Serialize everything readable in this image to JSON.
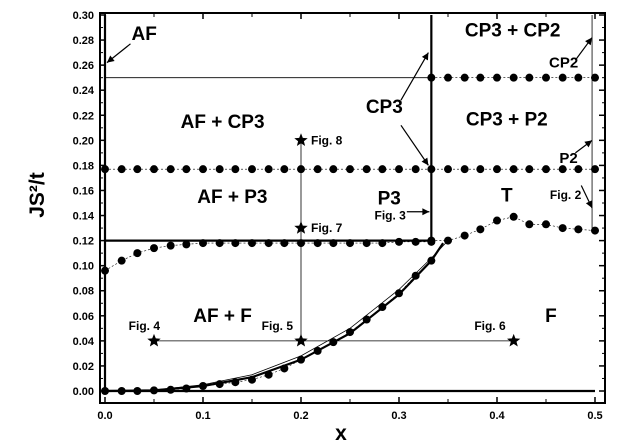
{
  "chart_data": {
    "type": "scatter",
    "xlabel": "x",
    "ylabel": "JS²/t",
    "xlim": [
      0,
      0.5
    ],
    "ylim": [
      -0.01,
      0.3
    ],
    "x_ticks": [
      "0.0",
      "0.1",
      "0.2",
      "0.3",
      "0.4",
      "0.5"
    ],
    "y_ticks": [
      "0.00",
      "0.02",
      "0.04",
      "0.06",
      "0.08",
      "0.10",
      "0.12",
      "0.14",
      "0.16",
      "0.18",
      "0.20",
      "0.22",
      "0.24",
      "0.26",
      "0.28",
      "0.30"
    ],
    "x_tick_values": [
      0,
      0.1,
      0.2,
      0.3,
      0.4,
      0.5
    ],
    "y_tick_values": [
      0,
      0.02,
      0.04,
      0.06,
      0.08,
      0.1,
      0.12,
      0.14,
      0.16,
      0.18,
      0.2,
      0.22,
      0.24,
      0.26,
      0.28,
      0.3
    ],
    "grid": false,
    "series": [
      {
        "style": "dots",
        "x": [
          0.0,
          0.017,
          0.033,
          0.05,
          0.067,
          0.083,
          0.1,
          0.117,
          0.133,
          0.15,
          0.167,
          0.183,
          0.2,
          0.217,
          0.233,
          0.25,
          0.267,
          0.283,
          0.3,
          0.317,
          0.333
        ],
        "y": [
          0.0,
          0.0,
          0.0,
          0.0005,
          0.001,
          0.002,
          0.004,
          0.0055,
          0.007,
          0.009,
          0.013,
          0.018,
          0.025,
          0.032,
          0.039,
          0.047,
          0.057,
          0.067,
          0.078,
          0.092,
          0.104
        ]
      },
      {
        "style": "dots",
        "x": [
          0.0,
          0.017,
          0.033,
          0.05,
          0.067,
          0.083,
          0.1,
          0.117,
          0.133,
          0.15,
          0.167,
          0.183,
          0.2,
          0.217,
          0.233,
          0.25,
          0.267,
          0.283,
          0.3,
          0.317,
          0.333
        ],
        "y": [
          0.096,
          0.104,
          0.11,
          0.114,
          0.116,
          0.117,
          0.118,
          0.118,
          0.118,
          0.118,
          0.118,
          0.118,
          0.118,
          0.118,
          0.118,
          0.118,
          0.118,
          0.118,
          0.119,
          0.119,
          0.119
        ]
      },
      {
        "style": "dots",
        "x": [
          0.333,
          0.35,
          0.367,
          0.383,
          0.4,
          0.417,
          0.433,
          0.45,
          0.467,
          0.483,
          0.5
        ],
        "y": [
          0.12,
          0.12,
          0.124,
          0.129,
          0.136,
          0.139,
          0.133,
          0.133,
          0.13,
          0.129,
          0.128
        ]
      },
      {
        "style": "dots",
        "x": [
          0.0,
          0.017,
          0.033,
          0.05,
          0.067,
          0.083,
          0.1,
          0.117,
          0.133,
          0.15,
          0.167,
          0.183,
          0.2,
          0.217,
          0.233,
          0.25,
          0.267,
          0.283,
          0.3,
          0.317,
          0.333,
          0.35,
          0.367,
          0.383,
          0.4,
          0.417,
          0.433,
          0.45,
          0.467,
          0.483,
          0.5
        ],
        "y": [
          0.177,
          0.177,
          0.177,
          0.177,
          0.177,
          0.177,
          0.177,
          0.177,
          0.177,
          0.177,
          0.177,
          0.177,
          0.177,
          0.177,
          0.177,
          0.177,
          0.177,
          0.177,
          0.177,
          0.177,
          0.177,
          0.177,
          0.177,
          0.177,
          0.177,
          0.177,
          0.177,
          0.177,
          0.177,
          0.177,
          0.177
        ]
      },
      {
        "style": "dots",
        "x": [
          0.333,
          0.35,
          0.367,
          0.383,
          0.4,
          0.417,
          0.433,
          0.45,
          0.467,
          0.483,
          0.5
        ],
        "y": [
          0.25,
          0.25,
          0.25,
          0.25,
          0.25,
          0.25,
          0.25,
          0.25,
          0.25,
          0.25,
          0.25
        ]
      },
      {
        "style": "thick",
        "x": [
          0.0,
          0.05,
          0.1,
          0.15,
          0.2,
          0.25,
          0.3,
          0.333,
          0.345
        ],
        "y": [
          0.0,
          0.0005,
          0.004,
          0.011,
          0.025,
          0.046,
          0.077,
          0.104,
          0.118
        ]
      },
      {
        "style": "thin",
        "x": [
          0.0,
          0.05,
          0.1,
          0.15,
          0.2,
          0.25,
          0.3,
          0.333,
          0.35
        ],
        "y": [
          0.0,
          0.0008,
          0.005,
          0.013,
          0.028,
          0.05,
          0.081,
          0.106,
          0.12
        ]
      },
      {
        "style": "thick",
        "x": [
          0.0,
          0.333
        ],
        "y": [
          0.12,
          0.12
        ]
      },
      {
        "style": "thin",
        "x": [
          0.0,
          0.333
        ],
        "y": [
          0.25,
          0.25
        ]
      },
      {
        "style": "thin",
        "x": [
          0.05,
          0.417
        ],
        "y": [
          0.04,
          0.04
        ]
      },
      {
        "style": "thin",
        "x": [
          0.2,
          0.2
        ],
        "y": [
          0.04,
          0.2
        ]
      },
      {
        "style": "thick",
        "x": [
          0.333,
          0.333
        ],
        "y": [
          0.12,
          0.3
        ]
      },
      {
        "style": "thick",
        "x": [
          0.0,
          0.0
        ],
        "y": [
          0.0,
          0.3
        ]
      },
      {
        "style": "thick",
        "x": [
          0.0,
          0.5
        ],
        "y": [
          0.0,
          0.0
        ]
      },
      {
        "style": "thin",
        "x": [
          0.497,
          0.497
        ],
        "y": [
          0.13,
          0.3
        ]
      }
    ],
    "stars": [
      {
        "x": 0.05,
        "y": 0.04,
        "label": "Fig. 4"
      },
      {
        "x": 0.2,
        "y": 0.04,
        "label": "Fig. 5"
      },
      {
        "x": 0.417,
        "y": 0.04,
        "label": "Fig. 6"
      },
      {
        "x": 0.2,
        "y": 0.13,
        "label": "Fig. 7"
      },
      {
        "x": 0.2,
        "y": 0.2,
        "label": "Fig. 8"
      }
    ],
    "annotations": [
      {
        "text": "AF",
        "x": 0.04,
        "y": 0.28,
        "kind": "region"
      },
      {
        "text": "AF + CP3",
        "x": 0.12,
        "y": 0.21,
        "kind": "region"
      },
      {
        "text": "AF + P3",
        "x": 0.13,
        "y": 0.15,
        "kind": "region"
      },
      {
        "text": "AF + F",
        "x": 0.12,
        "y": 0.055,
        "kind": "region"
      },
      {
        "text": "F",
        "x": 0.455,
        "y": 0.055,
        "kind": "region"
      },
      {
        "text": "CP3 + CP2",
        "x": 0.416,
        "y": 0.283,
        "kind": "region"
      },
      {
        "text": "CP3 + P2",
        "x": 0.41,
        "y": 0.212,
        "kind": "region"
      },
      {
        "text": "CP3",
        "x": 0.285,
        "y": 0.222,
        "kind": "side"
      },
      {
        "text": "P3",
        "x": 0.29,
        "y": 0.149,
        "kind": "side"
      },
      {
        "text": "CP2",
        "x": 0.468,
        "y": 0.258,
        "kind": "side-small"
      },
      {
        "text": "P2",
        "x": 0.473,
        "y": 0.182,
        "kind": "side-small"
      },
      {
        "text": "T",
        "x": 0.41,
        "y": 0.151,
        "kind": "side"
      },
      {
        "text": "Fig. 3",
        "x": 0.291,
        "y": 0.137,
        "kind": "fig"
      },
      {
        "text": "Fig. 2",
        "x": 0.47,
        "y": 0.153,
        "kind": "fig"
      }
    ],
    "arrows": [
      {
        "from": [
          0.026,
          0.277
        ],
        "to": [
          0.002,
          0.262
        ]
      },
      {
        "from": [
          0.302,
          0.232
        ],
        "to": [
          0.33,
          0.27
        ]
      },
      {
        "from": [
          0.302,
          0.212
        ],
        "to": [
          0.33,
          0.18
        ]
      },
      {
        "from": [
          0.308,
          0.143
        ],
        "to": [
          0.331,
          0.143
        ]
      },
      {
        "from": [
          0.48,
          0.264
        ],
        "to": [
          0.497,
          0.282
        ]
      },
      {
        "from": [
          0.48,
          0.19
        ],
        "to": [
          0.497,
          0.2
        ]
      },
      {
        "from": [
          0.486,
          0.164
        ],
        "to": [
          0.497,
          0.146
        ]
      }
    ]
  }
}
